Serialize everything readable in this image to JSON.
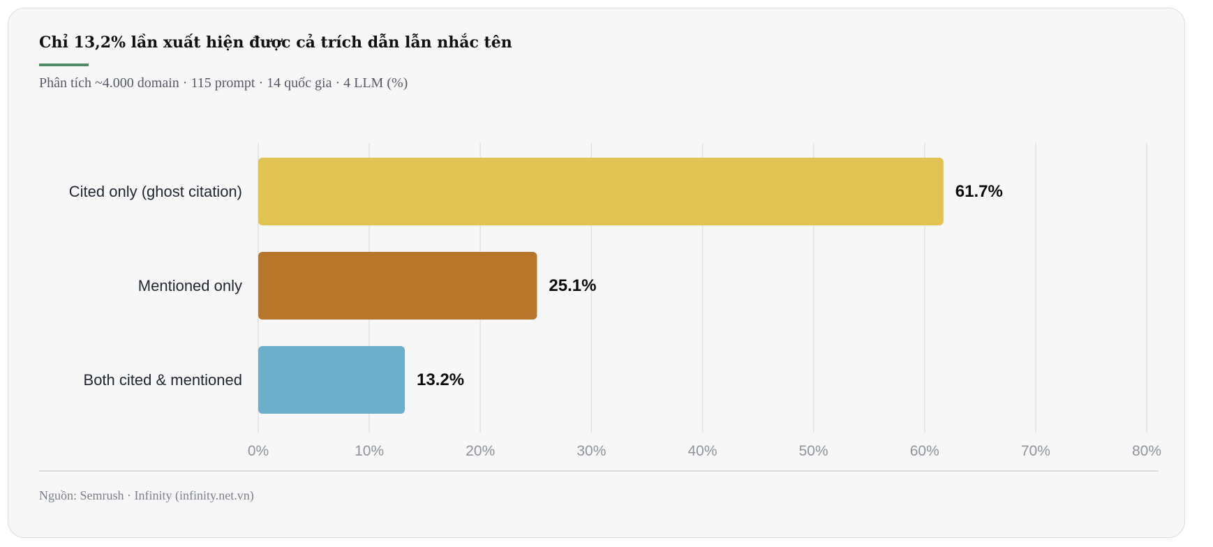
{
  "header": {
    "title": "Chỉ 13,2% lần xuất hiện được cả trích dẫn lẫn nhắc tên",
    "subtitle": "Phân tích ~4.000 domain · 115 prompt · 14 quốc gia · 4 LLM (%)"
  },
  "footer": {
    "source": "Nguồn: Semrush · Infinity (infinity.net.vn)"
  },
  "colors": {
    "accent": "#4e8a63",
    "card_background": "#f7f7f7",
    "gridline": "#e1e1e1"
  },
  "chart_data": {
    "type": "bar",
    "orientation": "horizontal",
    "categories": [
      "Cited only (ghost citation)",
      "Mentioned only",
      "Both cited & mentioned"
    ],
    "values": [
      61.7,
      25.1,
      13.2
    ],
    "value_labels": [
      "61.7%",
      "25.1%",
      "13.2%"
    ],
    "colors": [
      "#e0c350",
      "#b8762b",
      "#6cafcb"
    ],
    "xlim": [
      0,
      80
    ],
    "x_ticks": [
      0,
      10,
      20,
      30,
      40,
      50,
      60,
      70,
      80
    ],
    "x_tick_labels": [
      "0%",
      "10%",
      "20%",
      "30%",
      "40%",
      "50%",
      "60%",
      "70%",
      "80%"
    ],
    "grid": true,
    "legend": "none"
  }
}
